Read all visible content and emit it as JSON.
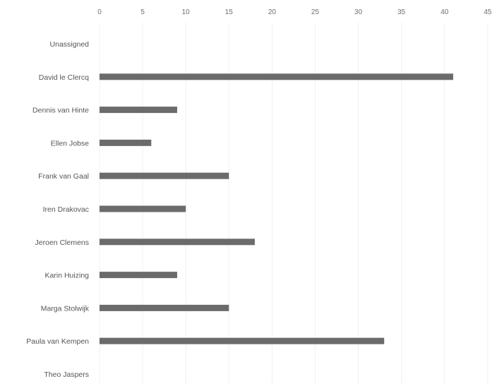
{
  "chart_data": {
    "type": "bar",
    "orientation": "horizontal",
    "title": "",
    "xlabel": "",
    "ylabel": "",
    "xlim": [
      0,
      45
    ],
    "x_ticks": [
      "0",
      "5",
      "10",
      "15",
      "20",
      "25",
      "30",
      "35",
      "40",
      "45"
    ],
    "x_tick_values": [
      0,
      5,
      10,
      15,
      20,
      25,
      30,
      35,
      40,
      45
    ],
    "tick_position": "top",
    "grid": true,
    "legend": "none",
    "bar_color": "#6b6b6b",
    "categories": [
      "Unassigned",
      "David le Clercq",
      "Dennis van Hinte",
      "Ellen Jobse",
      "Frank van Gaal",
      "Iren Drakovac",
      "Jeroen Clemens",
      "Karin Huizing",
      "Marga Stolwijk",
      "Paula van Kempen",
      "Theo Jaspers"
    ],
    "values": [
      0,
      41,
      9,
      6,
      15,
      10,
      18,
      9,
      15,
      33,
      0
    ]
  }
}
